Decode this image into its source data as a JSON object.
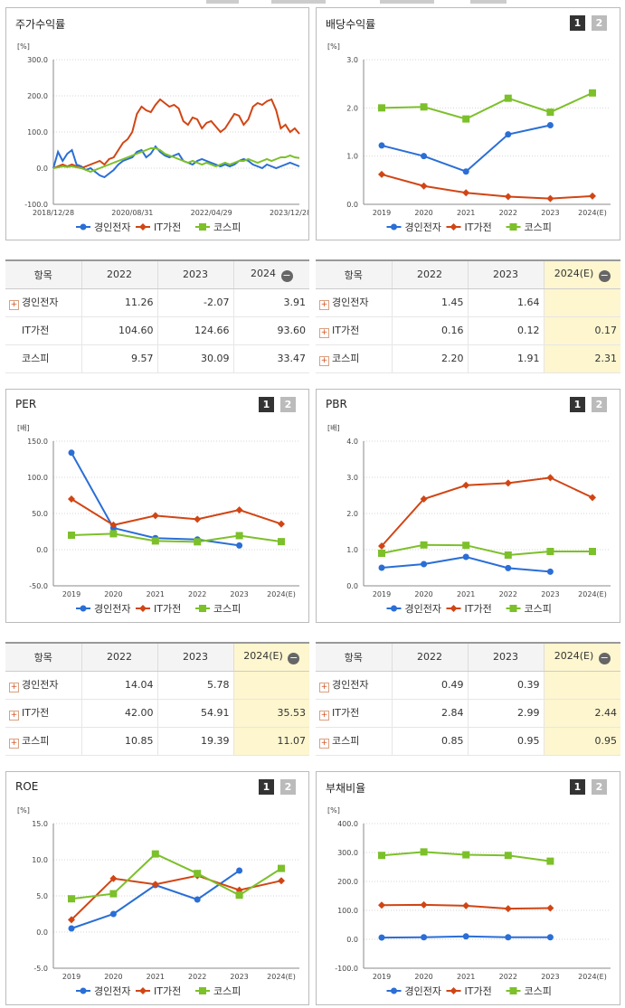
{
  "legend_names": [
    "경인전자",
    "IT가전",
    "코스피"
  ],
  "colors": {
    "경인전자": "#2a6ed6",
    "IT가전": "#d14514",
    "코스피": "#7cc02a"
  },
  "buttons": {
    "b1": "1",
    "b2": "2"
  },
  "panels": {
    "stock_return": {
      "title": "주가수익률"
    },
    "dividend": {
      "title": "배당수익률"
    },
    "per": {
      "title": "PER"
    },
    "pbr": {
      "title": "PBR"
    },
    "roe": {
      "title": "ROE"
    },
    "debt": {
      "title": "부채비율"
    }
  },
  "chart_data": [
    {
      "id": "stock_return",
      "type": "line",
      "unit": "[%]",
      "xlabels": [
        "2018/12/28",
        "2020/08/31",
        "2022/04/29",
        "2023/12/28"
      ],
      "ylim": [
        -100,
        300
      ],
      "yticks": [
        "300.0",
        "200.0",
        "100.0",
        "0.0",
        "-100.0"
      ],
      "series": [
        {
          "name": "경인전자",
          "values": [
            0,
            45,
            20,
            40,
            50,
            10,
            5,
            -5,
            0,
            -10,
            -20,
            -25,
            -15,
            -5,
            10,
            20,
            25,
            30,
            45,
            50,
            30,
            40,
            60,
            45,
            35,
            30,
            35,
            40,
            20,
            15,
            10,
            20,
            25,
            20,
            15,
            10,
            5,
            10,
            5,
            10,
            20,
            25,
            20,
            10,
            5,
            0,
            10,
            5,
            0,
            5,
            10,
            15,
            10,
            5
          ]
        },
        {
          "name": "IT가전",
          "values": [
            0,
            5,
            10,
            5,
            10,
            5,
            0,
            5,
            10,
            15,
            20,
            10,
            25,
            30,
            50,
            70,
            80,
            100,
            150,
            170,
            160,
            155,
            175,
            190,
            180,
            170,
            175,
            165,
            130,
            120,
            140,
            135,
            110,
            125,
            130,
            115,
            100,
            110,
            130,
            150,
            145,
            120,
            135,
            170,
            180,
            175,
            185,
            190,
            160,
            110,
            120,
            100,
            110,
            95
          ]
        },
        {
          "name": "코스피",
          "values": [
            0,
            2,
            5,
            3,
            5,
            2,
            0,
            -5,
            -10,
            -5,
            0,
            5,
            10,
            15,
            20,
            25,
            30,
            35,
            40,
            45,
            50,
            55,
            55,
            50,
            40,
            35,
            30,
            25,
            20,
            15,
            20,
            15,
            10,
            15,
            10,
            5,
            10,
            15,
            10,
            15,
            20,
            20,
            25,
            20,
            15,
            20,
            25,
            20,
            25,
            30,
            30,
            35,
            30,
            28
          ]
        }
      ]
    },
    {
      "id": "dividend",
      "type": "line",
      "unit": "[%]",
      "categories": [
        "2019",
        "2020",
        "2021",
        "2022",
        "2023",
        "2024(E)"
      ],
      "ylim": [
        0,
        3
      ],
      "yticks": [
        "3.0",
        "2.0",
        "1.0",
        "0.0"
      ],
      "series": [
        {
          "name": "경인전자",
          "values": [
            1.22,
            1.0,
            0.68,
            1.45,
            1.64,
            null
          ]
        },
        {
          "name": "IT가전",
          "values": [
            0.62,
            0.38,
            0.24,
            0.16,
            0.12,
            0.17
          ]
        },
        {
          "name": "코스피",
          "values": [
            2.0,
            2.02,
            1.77,
            2.2,
            1.91,
            2.31
          ]
        }
      ]
    },
    {
      "id": "per",
      "type": "line",
      "unit": "[배]",
      "categories": [
        "2019",
        "2020",
        "2021",
        "2022",
        "2023",
        "2024(E)"
      ],
      "ylim": [
        -50,
        150
      ],
      "yticks": [
        "150.0",
        "100.0",
        "50.0",
        "0.0",
        "-50.0"
      ],
      "series": [
        {
          "name": "경인전자",
          "values": [
            134,
            30,
            16,
            14.04,
            5.78,
            null
          ]
        },
        {
          "name": "IT가전",
          "values": [
            70,
            34,
            47,
            42.0,
            54.91,
            35.53
          ]
        },
        {
          "name": "코스피",
          "values": [
            20,
            22,
            12,
            10.85,
            19.39,
            11.07
          ]
        }
      ]
    },
    {
      "id": "pbr",
      "type": "line",
      "unit": "[배]",
      "categories": [
        "2019",
        "2020",
        "2021",
        "2022",
        "2023",
        "2024(E)"
      ],
      "ylim": [
        0,
        4
      ],
      "yticks": [
        "4.0",
        "3.0",
        "2.0",
        "1.0",
        "0.0"
      ],
      "series": [
        {
          "name": "경인전자",
          "values": [
            0.5,
            0.6,
            0.8,
            0.49,
            0.39,
            null
          ]
        },
        {
          "name": "IT가전",
          "values": [
            1.1,
            2.4,
            2.78,
            2.84,
            2.99,
            2.44
          ]
        },
        {
          "name": "코스피",
          "values": [
            0.9,
            1.13,
            1.12,
            0.85,
            0.95,
            0.95
          ]
        }
      ]
    },
    {
      "id": "roe",
      "type": "line",
      "unit": "[%]",
      "categories": [
        "2019",
        "2020",
        "2021",
        "2022",
        "2023",
        "2024(E)"
      ],
      "ylim": [
        -5,
        15
      ],
      "yticks": [
        "15.0",
        "10.0",
        "5.0",
        "0.0",
        "-5.0"
      ],
      "series": [
        {
          "name": "경인전자",
          "values": [
            0.5,
            2.5,
            6.5,
            4.5,
            8.5,
            null
          ]
        },
        {
          "name": "IT가전",
          "values": [
            1.7,
            7.4,
            6.6,
            7.8,
            5.8,
            7.1
          ]
        },
        {
          "name": "코스피",
          "values": [
            4.6,
            5.3,
            10.8,
            8.1,
            5.1,
            8.8
          ]
        }
      ]
    },
    {
      "id": "debt",
      "type": "line",
      "unit": "[%]",
      "categories": [
        "2019",
        "2020",
        "2021",
        "2022",
        "2023",
        "2024(E)"
      ],
      "ylim": [
        -100,
        400
      ],
      "yticks": [
        "400.0",
        "300.0",
        "200.0",
        "100.0",
        "0.0",
        "-100.0"
      ],
      "series": [
        {
          "name": "경인전자",
          "values": [
            6,
            7,
            10,
            7,
            7,
            null
          ]
        },
        {
          "name": "IT가전",
          "values": [
            118,
            119,
            116,
            106,
            108,
            null
          ]
        },
        {
          "name": "코스피",
          "values": [
            290,
            302,
            292,
            290,
            270,
            null
          ]
        }
      ]
    }
  ],
  "tables": {
    "stock_return": {
      "header": [
        "항목",
        "2022",
        "2023",
        "2024"
      ],
      "rows": [
        {
          "name": "경인전자",
          "plus": true,
          "values": [
            "11.26",
            "-2.07",
            "3.91"
          ]
        },
        {
          "name": "IT가전",
          "plus": false,
          "values": [
            "104.60",
            "124.66",
            "93.60"
          ]
        },
        {
          "name": "코스피",
          "plus": false,
          "values": [
            "9.57",
            "30.09",
            "33.47"
          ]
        }
      ]
    },
    "dividend": {
      "header": [
        "항목",
        "2022",
        "2023",
        "2024(E)"
      ],
      "rows": [
        {
          "name": "경인전자",
          "plus": true,
          "values": [
            "1.45",
            "1.64",
            ""
          ]
        },
        {
          "name": "IT가전",
          "plus": true,
          "values": [
            "0.16",
            "0.12",
            "0.17"
          ]
        },
        {
          "name": "코스피",
          "plus": true,
          "values": [
            "2.20",
            "1.91",
            "2.31"
          ]
        }
      ]
    },
    "per": {
      "header": [
        "항목",
        "2022",
        "2023",
        "2024(E)"
      ],
      "rows": [
        {
          "name": "경인전자",
          "plus": true,
          "values": [
            "14.04",
            "5.78",
            ""
          ]
        },
        {
          "name": "IT가전",
          "plus": true,
          "values": [
            "42.00",
            "54.91",
            "35.53"
          ]
        },
        {
          "name": "코스피",
          "plus": true,
          "values": [
            "10.85",
            "19.39",
            "11.07"
          ]
        }
      ]
    },
    "pbr": {
      "header": [
        "항목",
        "2022",
        "2023",
        "2024(E)"
      ],
      "rows": [
        {
          "name": "경인전자",
          "plus": true,
          "values": [
            "0.49",
            "0.39",
            ""
          ]
        },
        {
          "name": "IT가전",
          "plus": true,
          "values": [
            "2.84",
            "2.99",
            "2.44"
          ]
        },
        {
          "name": "코스피",
          "plus": true,
          "values": [
            "0.85",
            "0.95",
            "0.95"
          ]
        }
      ]
    }
  }
}
